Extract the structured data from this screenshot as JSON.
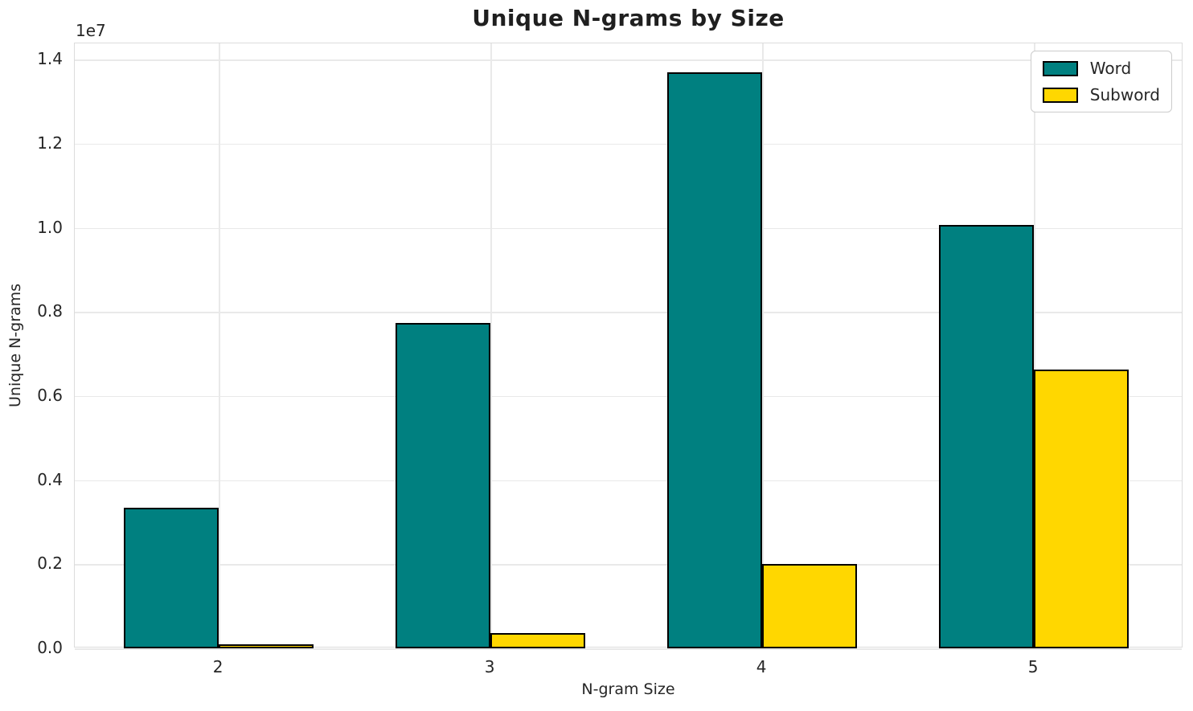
{
  "chart_data": {
    "type": "bar",
    "title": "Unique N-grams by Size",
    "xlabel": "N-gram Size",
    "ylabel": "Unique N-grams",
    "y_offset_text": "1e7",
    "categories": [
      "2",
      "3",
      "4",
      "5"
    ],
    "series": [
      {
        "name": "Word",
        "color": "#008080",
        "values": [
          3340000,
          7740000,
          13700000,
          10070000
        ]
      },
      {
        "name": "Subword",
        "color": "#FFD700",
        "values": [
          100000,
          360000,
          2010000,
          6630000
        ]
      }
    ],
    "ylim": [
      0,
      14385000
    ],
    "yticks": [
      0,
      2000000,
      4000000,
      6000000,
      8000000,
      10000000,
      12000000,
      14000000
    ],
    "ytick_labels": [
      "0.0",
      "0.2",
      "0.4",
      "0.6",
      "0.8",
      "1.0",
      "1.2",
      "1.4"
    ],
    "bar_width_fraction": 0.35,
    "grid": true,
    "legend_position": "upper right",
    "bar_edge_color": "#000000",
    "background_color": "#ffffff"
  }
}
